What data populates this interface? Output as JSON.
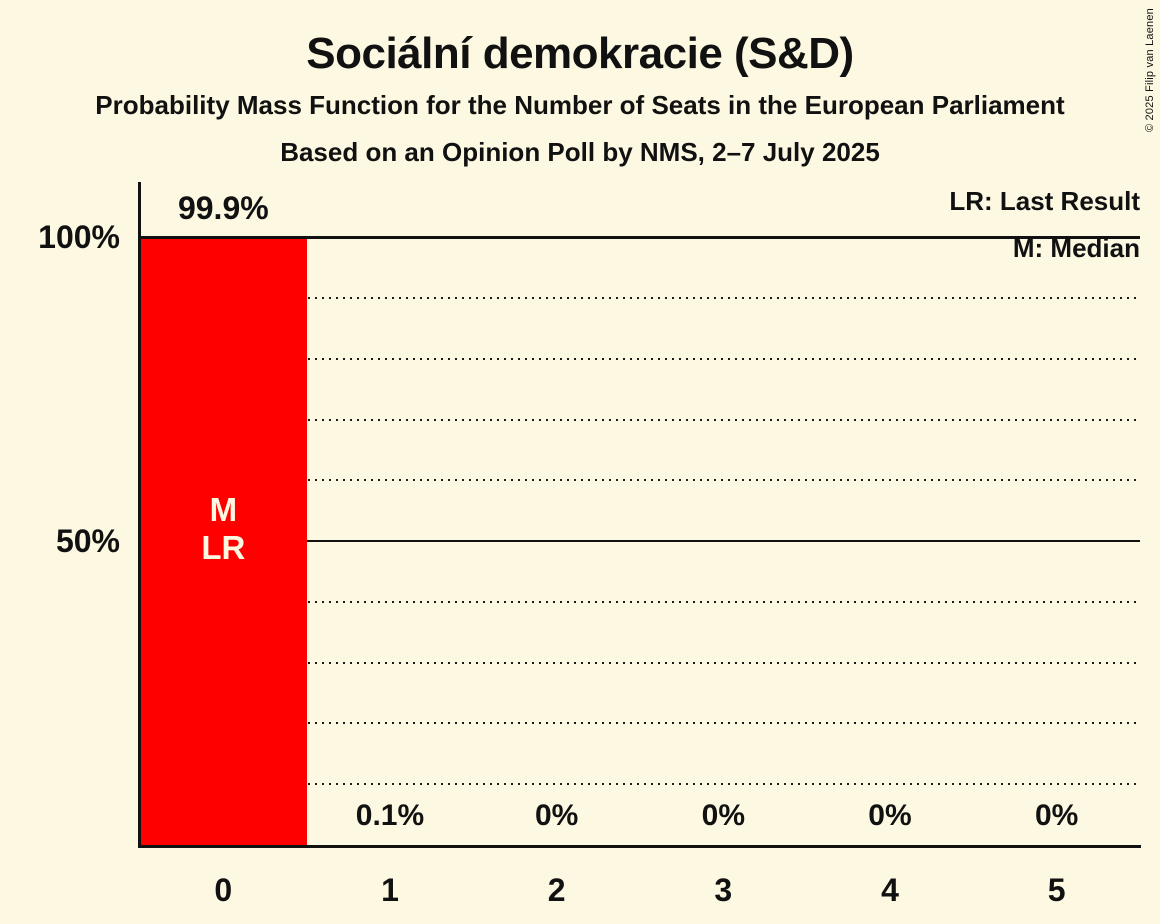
{
  "page": {
    "background": "#FCF8E1",
    "text_color": "#111111"
  },
  "header": {
    "title": "Sociální demokracie (S&D)",
    "subtitle": "Probability Mass Function for the Number of Seats in the European Parliament",
    "poll_line": "Based on an Opinion Poll by NMS, 2–7 July 2025"
  },
  "legend": {
    "lr": "LR: Last Result",
    "m": "M: Median"
  },
  "copyright": "© 2025 Filip van Laenen",
  "chart_data": {
    "type": "bar",
    "title": "Sociální demokracie (S&D)",
    "subtitle": "Probability Mass Function for the Number of Seats in the European Parliament",
    "source_line": "Based on an Opinion Poll by NMS, 2–7 July 2025",
    "categories": [
      "0",
      "1",
      "2",
      "3",
      "4",
      "5"
    ],
    "values": [
      99.9,
      0.1,
      0,
      0,
      0,
      0
    ],
    "value_labels": [
      "99.9%",
      "0.1%",
      "0%",
      "0%",
      "0%",
      "0%"
    ],
    "ylim": [
      0,
      100
    ],
    "yticks": [
      {
        "value": 100,
        "label": "100%"
      },
      {
        "value": 50,
        "label": "50%"
      }
    ],
    "gridlines": {
      "dotted_percents": [
        10,
        20,
        30,
        40,
        60,
        70,
        80,
        90
      ],
      "solid_percents": [
        50,
        100
      ],
      "grid_on": true
    },
    "legend_entries": [
      "LR: Last Result",
      "M: Median"
    ],
    "legend_position": "top-right",
    "bar_color": "#FF0000",
    "bar_label_color": "#FCF8E1",
    "annotations": {
      "median_category": "0",
      "last_result_category": "0",
      "lines": [
        "M",
        "LR"
      ]
    }
  }
}
